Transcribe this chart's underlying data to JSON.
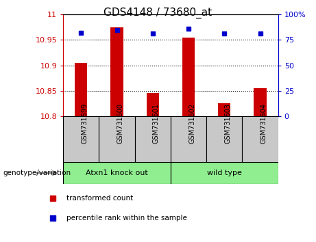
{
  "title": "GDS4148 / 73680_at",
  "samples": [
    "GSM731599",
    "GSM731600",
    "GSM731601",
    "GSM731602",
    "GSM731603",
    "GSM731604"
  ],
  "transformed_count": [
    10.905,
    10.975,
    10.845,
    10.955,
    10.825,
    10.855
  ],
  "percentile_rank": [
    82,
    85,
    81,
    86,
    81,
    81
  ],
  "ylim_left": [
    10.8,
    11.0
  ],
  "ylim_right": [
    0,
    100
  ],
  "yticks_left": [
    10.8,
    10.85,
    10.9,
    10.95,
    11.0
  ],
  "ytick_labels_left": [
    "10.8",
    "10.85",
    "10.9",
    "10.95",
    "11"
  ],
  "yticks_right": [
    0,
    25,
    50,
    75,
    100
  ],
  "ytick_labels_right": [
    "0",
    "25",
    "50",
    "75",
    "100%"
  ],
  "group_labels": [
    "Atxn1 knock out",
    "wild type"
  ],
  "group_sizes": [
    3,
    3
  ],
  "group_color": "#90EE90",
  "bar_color": "#CC0000",
  "marker_color": "#0000CC",
  "bar_width": 0.35,
  "baseline": 10.8,
  "label_color_left": "#CC0000",
  "label_color_right": "#0000CC",
  "legend_items": [
    {
      "label": "transformed count",
      "color": "#CC0000"
    },
    {
      "label": "percentile rank within the sample",
      "color": "#0000CC"
    }
  ],
  "genotype_label": "genotype/variation",
  "sample_bg_color": "#C8C8C8",
  "figure_bg_color": "#FFFFFF",
  "plot_bg_color": "#FFFFFF"
}
